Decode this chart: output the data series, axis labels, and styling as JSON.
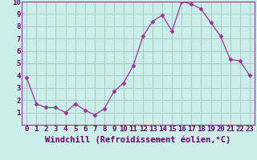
{
  "x": [
    0,
    1,
    2,
    3,
    4,
    5,
    6,
    7,
    8,
    9,
    10,
    11,
    12,
    13,
    14,
    15,
    16,
    17,
    18,
    19,
    20,
    21,
    22,
    23
  ],
  "y": [
    3.8,
    1.7,
    1.4,
    1.4,
    1.0,
    1.7,
    1.2,
    0.8,
    1.3,
    2.7,
    3.4,
    4.8,
    7.2,
    8.4,
    8.9,
    7.6,
    10.0,
    9.8,
    9.4,
    8.3,
    7.2,
    5.3,
    5.2,
    4.0
  ],
  "line_color": "#993399",
  "marker": "D",
  "marker_size": 2.5,
  "bg_color": "#cceee8",
  "grid_color": "#aacccc",
  "xlabel": "Windchill (Refroidissement éolien,°C)",
  "xlabel_fontsize": 7.5,
  "tick_fontsize": 6.5,
  "xlim": [
    -0.5,
    23.5
  ],
  "ylim": [
    0,
    10
  ],
  "yticks": [
    1,
    2,
    3,
    4,
    5,
    6,
    7,
    8,
    9,
    10
  ],
  "xticks": [
    0,
    1,
    2,
    3,
    4,
    5,
    6,
    7,
    8,
    9,
    10,
    11,
    12,
    13,
    14,
    15,
    16,
    17,
    18,
    19,
    20,
    21,
    22,
    23
  ],
  "label_color": "#660066",
  "spine_color": "#993399"
}
